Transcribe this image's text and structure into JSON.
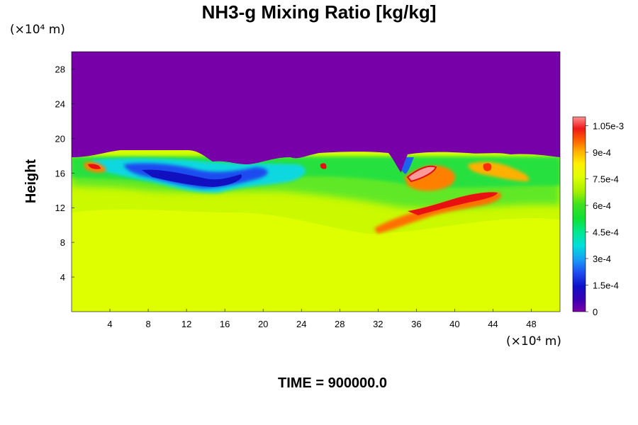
{
  "chart_data": {
    "type": "heatmap",
    "title": "NH3-g Mixing Ratio [kg/kg]",
    "ylabel": "Height",
    "xlabel": "",
    "x_unit": "(×10⁴ m)",
    "y_unit": "(×10⁴ m)",
    "xlim": [
      0,
      51
    ],
    "ylim": [
      0,
      30
    ],
    "x_ticks": [
      4,
      8,
      12,
      16,
      20,
      24,
      28,
      32,
      36,
      40,
      44,
      48
    ],
    "y_ticks": [
      4,
      8,
      12,
      16,
      20,
      24,
      28
    ],
    "colorbar": {
      "range": [
        0,
        0.0011
      ],
      "ticks": [
        {
          "value": 0,
          "label": "0"
        },
        {
          "value": 0.00015,
          "label": "1.5e-4"
        },
        {
          "value": 0.0003,
          "label": "3e-4"
        },
        {
          "value": 0.00045,
          "label": "4.5e-4"
        },
        {
          "value": 0.0006,
          "label": "6e-4"
        },
        {
          "value": 0.00075,
          "label": "7.5e-4"
        },
        {
          "value": 0.0009,
          "label": "9e-4"
        },
        {
          "value": 0.00105,
          "label": "1.05e-3"
        }
      ]
    },
    "fields": {
      "upper_layer": {
        "above_height": 18,
        "value": 0
      },
      "lower_layer": {
        "below_height": 10.5,
        "value": 0.00078
      }
    }
  },
  "footer": {
    "time_label": "TIME = 900000.0"
  },
  "colors": {
    "upper": "#7700a8",
    "lower": "#ddff00"
  }
}
